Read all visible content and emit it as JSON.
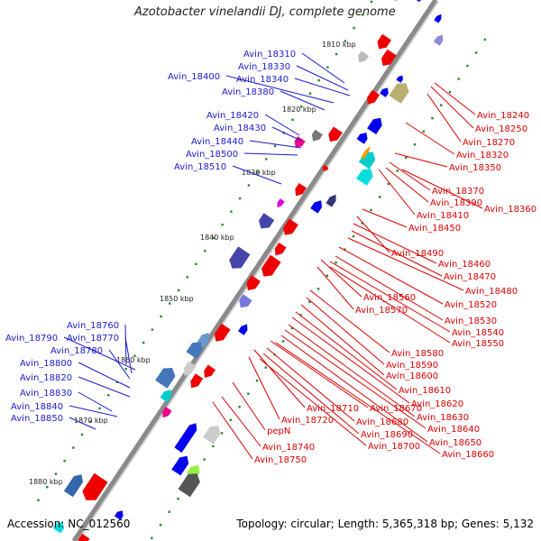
{
  "title": "Azotobacter vinelandii DJ, complete genome",
  "footer": {
    "accession": "Accession: NC_012560",
    "summary": "Topology: circular; Length: 5,365,318 bp; Genes: 5,132"
  },
  "colors": {
    "backbone": "#8a8a8a",
    "plus_strand": "#0000dd",
    "minus_strand": "#ee0000",
    "plus_label": "#1a1acc",
    "minus_label": "#dd0000",
    "tick_dot": "#228822",
    "tick_label": "#222222"
  },
  "ticks": [
    "1810 kbp",
    "1820 kbp",
    "1830 kbp",
    "1840 kbp",
    "1850 kbp",
    "1860 kbp",
    "1870 kbp",
    "1880 kbp"
  ],
  "plus_labels": [
    "Avin_18310",
    "Avin_18330",
    "Avin_18340",
    "Avin_18400",
    "Avin_18380",
    "Avin_18420",
    "Avin_18430",
    "Avin_18440",
    "Avin_18500",
    "Avin_18510",
    "Avin_18760",
    "Avin_18790",
    "Avin_18770",
    "Avin_18780",
    "Avin_18800",
    "Avin_18820",
    "Avin_18830",
    "Avin_18840",
    "Avin_18850"
  ],
  "minus_labels": [
    "Avin_18240",
    "Avin_18250",
    "Avin_18270",
    "Avin_18320",
    "Avin_18350",
    "Avin_18370",
    "Avin_18390",
    "Avin_18360",
    "Avin_18410",
    "Avin_18450",
    "Avin_18490",
    "Avin_18460",
    "Avin_18470",
    "Avin_18480",
    "Avin_18520",
    "Avin_18560",
    "Avin_18570",
    "Avin_18530",
    "Avin_18540",
    "Avin_18550",
    "Avin_18580",
    "Avin_18590",
    "Avin_18600",
    "Avin_18610",
    "Avin_18620",
    "Avin_18630",
    "Avin_18640",
    "Avin_18650",
    "Avin_18660",
    "Avin_18710",
    "Avin_18670",
    "Avin_18720",
    "Avin_18680",
    "Avin_18690",
    "Avin_18700",
    "pepN",
    "Avin_18740",
    "Avin_18750"
  ]
}
